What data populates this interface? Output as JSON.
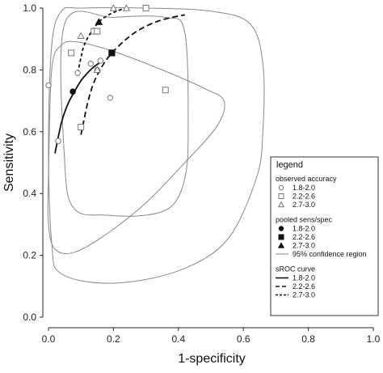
{
  "chart_data": {
    "type": "scatter",
    "xlabel": "1-specificity",
    "ylabel": "Sensitivity",
    "xlim": [
      0,
      1
    ],
    "ylim": [
      0,
      1
    ],
    "x_ticks": [
      "0.0",
      "0.2",
      "0.4",
      "0.6",
      "0.8",
      "1.0"
    ],
    "y_ticks": [
      "0.0",
      "0.2",
      "0.4",
      "0.6",
      "0.8",
      "1.0"
    ],
    "grid": false,
    "legend_placement": "right",
    "legend": {
      "title": "legend",
      "groups": [
        {
          "heading": "observed accuracy",
          "items": [
            {
              "label": "1.8-2.0",
              "symbol": "circle-open"
            },
            {
              "label": "2.2-2.6",
              "symbol": "square-open"
            },
            {
              "label": "2.7-3.0",
              "symbol": "triangle-open"
            }
          ]
        },
        {
          "heading": "pooled sens/spec",
          "items": [
            {
              "label": "1.8-2.0",
              "symbol": "circle-filled"
            },
            {
              "label": "2.2-2.6",
              "symbol": "square-filled"
            },
            {
              "label": "2.7-3.0",
              "symbol": "triangle-filled"
            },
            {
              "label": "95% confidence region",
              "symbol": "line-thin"
            }
          ]
        },
        {
          "heading": "sROC curve",
          "items": [
            {
              "label": "1.8-2.0",
              "symbol": "line-solid"
            },
            {
              "label": "2.2-2.6",
              "symbol": "line-dash"
            },
            {
              "label": "2.7-3.0",
              "symbol": "line-dash-fine"
            }
          ]
        }
      ]
    },
    "observed": [
      {
        "group": "1.8-2.0",
        "marker": "circle",
        "points": [
          [
            0.0,
            0.75
          ],
          [
            0.03,
            0.57
          ],
          [
            0.09,
            0.79
          ],
          [
            0.15,
            0.8
          ],
          [
            0.16,
            0.83
          ],
          [
            0.19,
            0.71
          ],
          [
            0.13,
            0.82
          ]
        ]
      },
      {
        "group": "2.2-2.6",
        "marker": "square",
        "points": [
          [
            0.07,
            0.855
          ],
          [
            0.1,
            0.615
          ],
          [
            0.14,
            0.925
          ],
          [
            0.15,
            0.925
          ],
          [
            0.3,
            1.0
          ],
          [
            0.36,
            0.735
          ]
        ]
      },
      {
        "group": "2.7-3.0",
        "marker": "triangle",
        "points": [
          [
            0.1,
            0.91
          ],
          [
            0.15,
            0.8
          ],
          [
            0.2,
            1.0
          ],
          [
            0.24,
            1.0
          ]
        ]
      }
    ],
    "pooled": [
      {
        "group": "1.8-2.0",
        "marker": "circle",
        "x": 0.075,
        "y": 0.73
      },
      {
        "group": "2.2-2.6",
        "marker": "square",
        "x": 0.195,
        "y": 0.855
      },
      {
        "group": "2.7-3.0",
        "marker": "triangle",
        "x": 0.155,
        "y": 0.955
      }
    ],
    "sroc_curves": [
      {
        "group": "1.8-2.0",
        "style": "solid",
        "points": [
          [
            0.02,
            0.53
          ],
          [
            0.04,
            0.63
          ],
          [
            0.06,
            0.69
          ],
          [
            0.08,
            0.73
          ],
          [
            0.1,
            0.765
          ],
          [
            0.12,
            0.79
          ],
          [
            0.14,
            0.81
          ],
          [
            0.16,
            0.825
          ]
        ]
      },
      {
        "group": "2.2-2.6",
        "style": "dash",
        "points": [
          [
            0.1,
            0.59
          ],
          [
            0.12,
            0.69
          ],
          [
            0.14,
            0.76
          ],
          [
            0.17,
            0.82
          ],
          [
            0.2,
            0.86
          ],
          [
            0.24,
            0.9
          ],
          [
            0.28,
            0.93
          ],
          [
            0.33,
            0.955
          ],
          [
            0.38,
            0.97
          ],
          [
            0.42,
            0.978
          ]
        ]
      },
      {
        "group": "2.7-3.0",
        "style": "dash-fine",
        "points": [
          [
            0.09,
            0.79
          ],
          [
            0.1,
            0.84
          ],
          [
            0.11,
            0.88
          ],
          [
            0.13,
            0.92
          ],
          [
            0.155,
            0.955
          ],
          [
            0.18,
            0.975
          ],
          [
            0.21,
            0.99
          ],
          [
            0.24,
            1.0
          ]
        ]
      }
    ],
    "confidence_regions": [
      {
        "group": "1.8-2.0",
        "points": [
          [
            0.0,
            0.45
          ],
          [
            0.01,
            0.8
          ],
          [
            0.04,
            0.88
          ],
          [
            0.09,
            0.89
          ],
          [
            0.2,
            0.86
          ],
          [
            0.35,
            0.8
          ],
          [
            0.48,
            0.74
          ],
          [
            0.54,
            0.7
          ],
          [
            0.52,
            0.62
          ],
          [
            0.42,
            0.5
          ],
          [
            0.3,
            0.37
          ],
          [
            0.18,
            0.27
          ],
          [
            0.08,
            0.21
          ],
          [
            0.02,
            0.22
          ],
          [
            0.0,
            0.3
          ],
          [
            0.0,
            0.45
          ]
        ]
      },
      {
        "group": "2.2-2.6",
        "points": [
          [
            0.05,
            0.95
          ],
          [
            0.2,
            0.97
          ],
          [
            0.36,
            0.97
          ],
          [
            0.42,
            0.92
          ],
          [
            0.43,
            0.6
          ],
          [
            0.42,
            0.45
          ],
          [
            0.38,
            0.36
          ],
          [
            0.3,
            0.33
          ],
          [
            0.18,
            0.33
          ],
          [
            0.08,
            0.35
          ],
          [
            0.05,
            0.5
          ],
          [
            0.05,
            0.95
          ]
        ]
      },
      {
        "group": "2.7-3.0",
        "points": [
          [
            0.1,
            1.0
          ],
          [
            0.3,
            1.0
          ],
          [
            0.5,
            0.99
          ],
          [
            0.62,
            0.95
          ],
          [
            0.66,
            0.82
          ],
          [
            0.66,
            0.6
          ],
          [
            0.64,
            0.45
          ],
          [
            0.55,
            0.25
          ],
          [
            0.4,
            0.15
          ],
          [
            0.2,
            0.11
          ],
          [
            0.04,
            0.14
          ],
          [
            0.01,
            0.24
          ],
          [
            0.0,
            0.55
          ],
          [
            0.01,
            0.88
          ],
          [
            0.04,
            0.99
          ],
          [
            0.1,
            1.0
          ]
        ]
      }
    ]
  }
}
